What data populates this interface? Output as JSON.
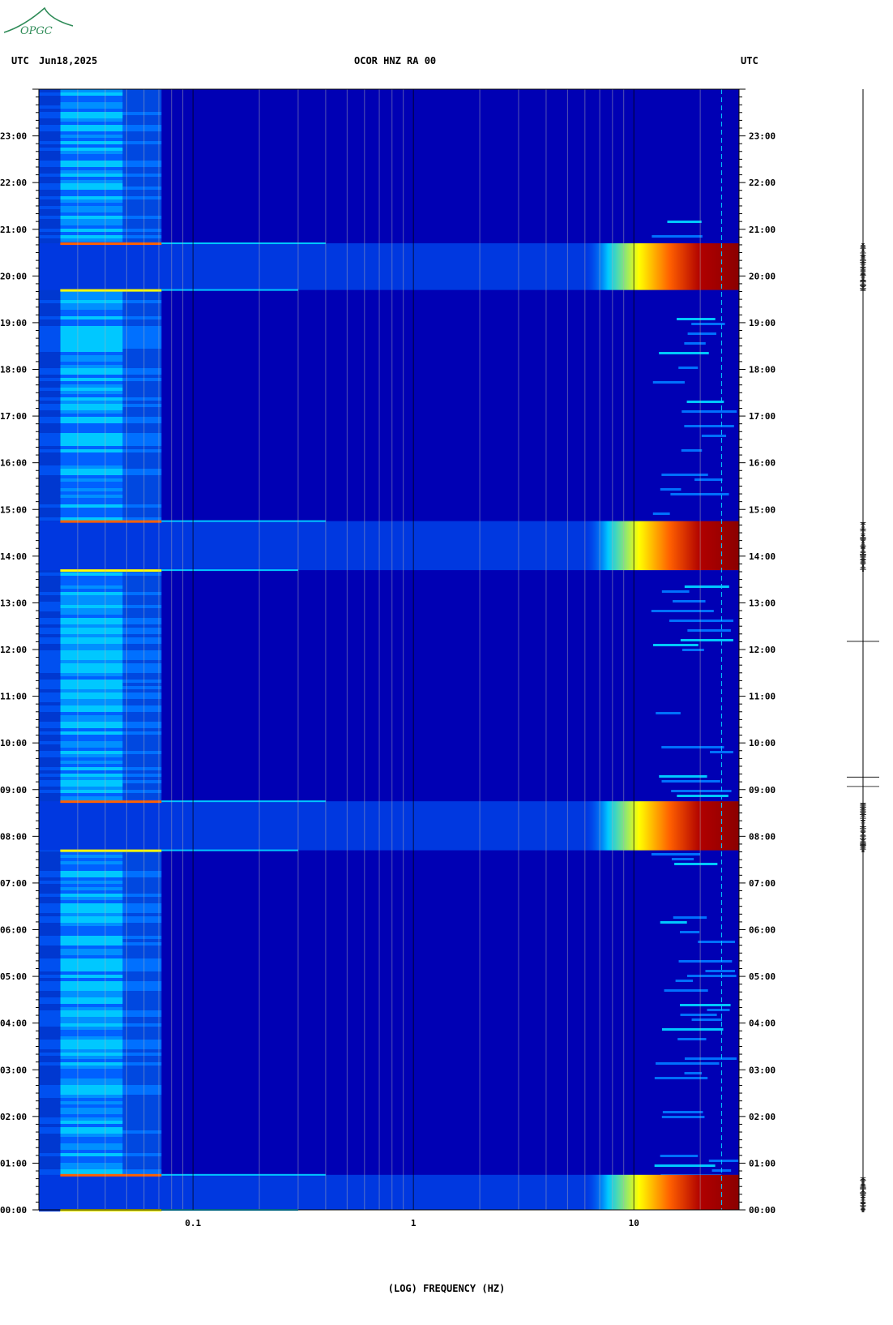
{
  "header": {
    "left_tz": "UTC",
    "date": "Jun18,2025",
    "station": "OCOR HNZ RA 00",
    "right_tz": "UTC"
  },
  "logo": {
    "text": "OPGC",
    "color": "#2e8b57"
  },
  "chart_data": {
    "type": "heatmap",
    "title": "OCOR HNZ RA 00",
    "xlabel": "(LOG) FREQUENCY (HZ)",
    "ylabel": "UTC",
    "x_scale": "log",
    "x_range_hz": [
      0.02,
      30
    ],
    "x_major_ticks": [
      {
        "value": 0.1,
        "label": "0.1"
      },
      {
        "value": 1,
        "label": "1"
      },
      {
        "value": 10,
        "label": "10"
      }
    ],
    "y_range_hours": [
      0,
      24
    ],
    "y_ticks": [
      "00:00",
      "01:00",
      "02:00",
      "03:00",
      "04:00",
      "05:00",
      "06:00",
      "07:00",
      "08:00",
      "09:00",
      "10:00",
      "11:00",
      "12:00",
      "13:00",
      "14:00",
      "15:00",
      "16:00",
      "17:00",
      "18:00",
      "19:00",
      "20:00",
      "21:00",
      "22:00",
      "23:00"
    ],
    "colormap": [
      "#0000b4",
      "#0040ff",
      "#00c8ff",
      "#ffff00",
      "#ff6000",
      "#8b0000"
    ],
    "high_energy_bands": [
      {
        "start_hour": 0.0,
        "end_hour": 0.75
      },
      {
        "start_hour": 7.7,
        "end_hour": 8.75
      },
      {
        "start_hour": 13.7,
        "end_hour": 14.75
      },
      {
        "start_hour": 19.7,
        "end_hour": 20.7
      }
    ],
    "grid": true
  }
}
